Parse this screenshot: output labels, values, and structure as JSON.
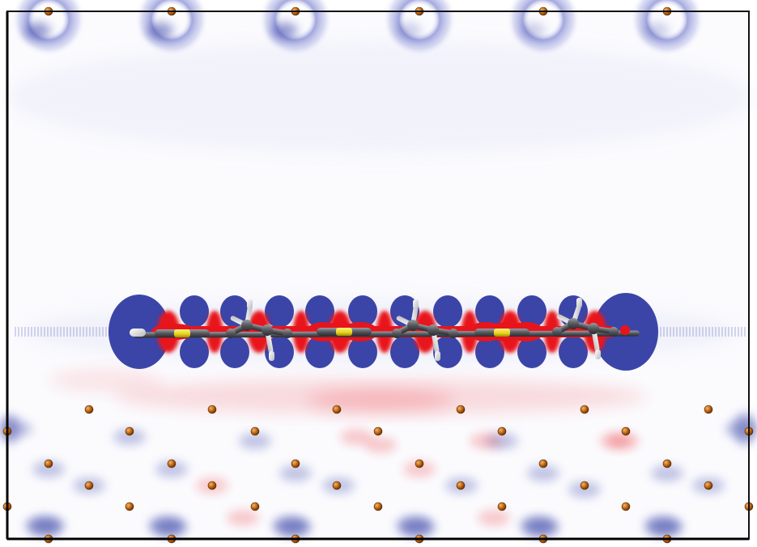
{
  "figure": {
    "kind": "charge-density-difference-slice",
    "colors": {
      "background": "#fbfbfe",
      "depletion": "#3b45a8",
      "accumulation": "#e8141c",
      "atom_top_layer": "#b8620e",
      "carbon": "#55575c",
      "hydrogen": "#f2f2f2",
      "sulfur_or_metal": "#e6d21a",
      "frame": "#111111"
    },
    "chain_units": [
      "sulfur-unit",
      "ethyl-unit",
      "sulfur-unit",
      "ethyl-unit",
      "sulfur-unit",
      "ethyl-unit"
    ]
  }
}
